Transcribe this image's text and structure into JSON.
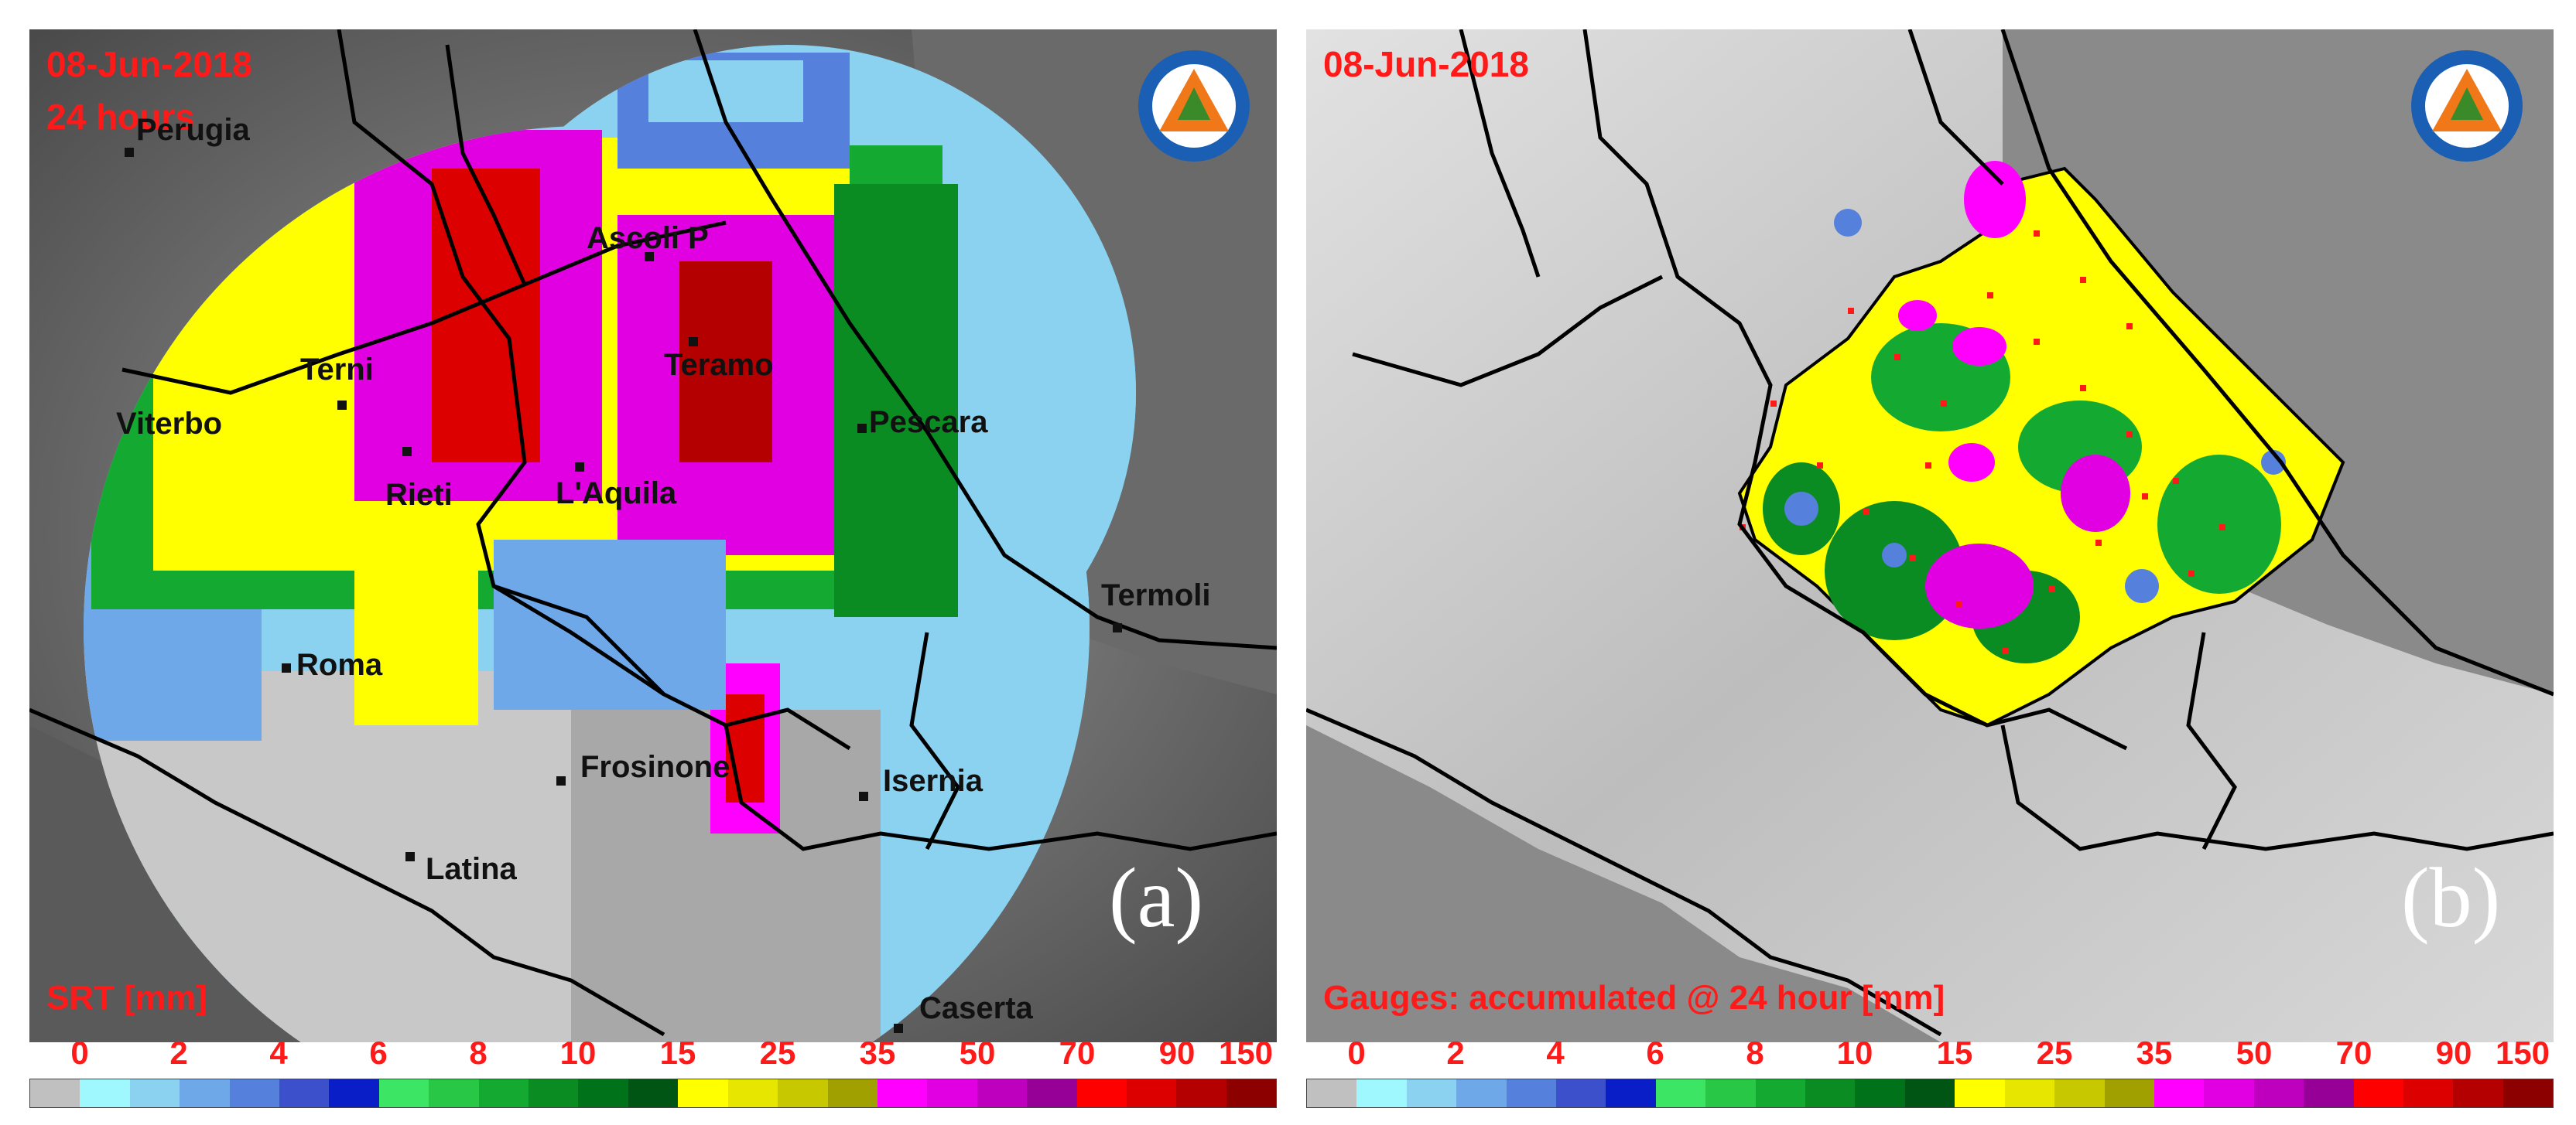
{
  "figure": {
    "panel_a": {
      "date": "08-Jun-2018",
      "duration": "24 hours",
      "units_label": "SRT [mm]",
      "panel_letter": "(a)",
      "cities": [
        {
          "name": "Perugia"
        },
        {
          "name": "Ascoli P"
        },
        {
          "name": "Terni"
        },
        {
          "name": "Teramo"
        },
        {
          "name": "Viterbo"
        },
        {
          "name": "Pescara"
        },
        {
          "name": "Rieti"
        },
        {
          "name": "L'Aquila"
        },
        {
          "name": "Termoli"
        },
        {
          "name": "Roma"
        },
        {
          "name": "Frosinone"
        },
        {
          "name": "Isernia"
        },
        {
          "name": "Latina"
        },
        {
          "name": "Caserta"
        }
      ]
    },
    "panel_b": {
      "date": "08-Jun-2018",
      "units_label": "Gauges: accumulated @ 24 hour [mm]",
      "panel_letter": "(b)"
    },
    "logo_icon": "protezione-civile-logo-icon",
    "scale_labels": [
      "0",
      "2",
      "4",
      "6",
      "8",
      "10",
      "15",
      "25",
      "35",
      "50",
      "70",
      "90",
      "150"
    ],
    "scale_colors": [
      "#c0c0c0",
      "#a0f8ff",
      "#8ad2f0",
      "#6ea8e8",
      "#5580dc",
      "#3c50cc",
      "#0a1ec8",
      "#3ce664",
      "#28c846",
      "#14aa32",
      "#0a8c23",
      "#00731a",
      "#005514",
      "#ffff00",
      "#e6e600",
      "#c8c800",
      "#a0a000",
      "#ff00ff",
      "#e100e1",
      "#be00be",
      "#960096",
      "#ff0000",
      "#dc0000",
      "#b40000",
      "#8c0000"
    ]
  }
}
